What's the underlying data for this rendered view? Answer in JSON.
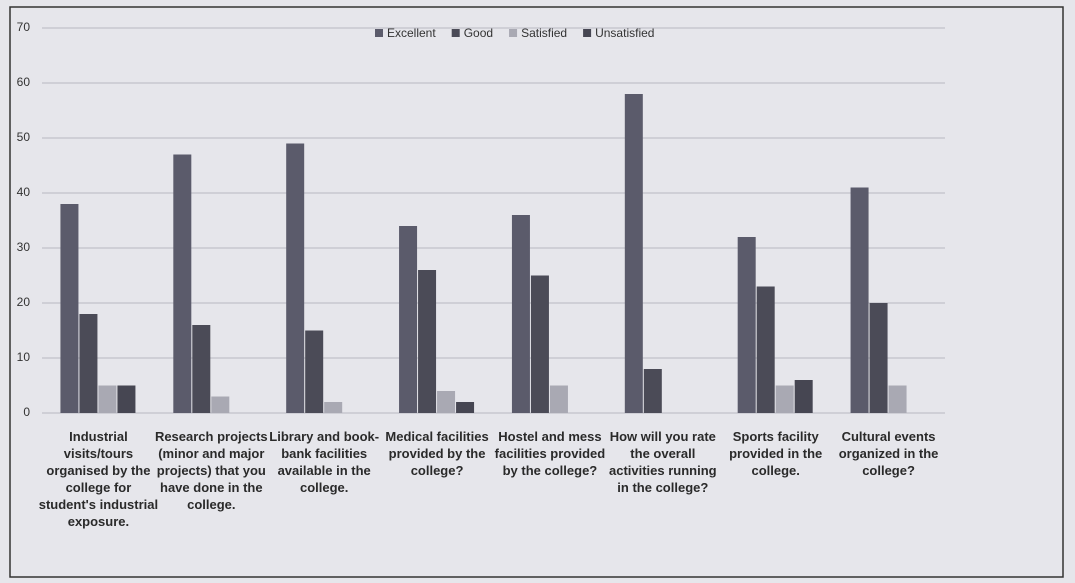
{
  "chart_data": {
    "type": "bar",
    "categories": [
      "Industrial visits/tours organised by the college for student's industrial exposure.",
      "Research projects (minor and major projects) that you have done in the college.",
      "Library and book-bank facilities available in the college.",
      "Medical facilities provided by the college?",
      "Hostel and mess facilities provided by the college?",
      "How will you rate the overall activities running in the college?",
      "Sports facility provided in the college.",
      "Cultural events organized in the college?"
    ],
    "series": [
      {
        "name": "Excellent",
        "color": "#5b5b6b",
        "values": [
          38,
          47,
          49,
          34,
          36,
          58,
          32,
          41
        ]
      },
      {
        "name": "Good",
        "color": "#4b4b57",
        "values": [
          18,
          16,
          15,
          26,
          25,
          8,
          23,
          20
        ]
      },
      {
        "name": "Satisfied",
        "color": "#a9a9b3",
        "values": [
          5,
          3,
          2,
          4,
          5,
          0,
          5,
          5
        ]
      },
      {
        "name": "Unsatisfied",
        "color": "#464652",
        "values": [
          5,
          0,
          0,
          2,
          0,
          0,
          6,
          0
        ]
      }
    ],
    "ylim": [
      0,
      70
    ],
    "yticks": [
      0,
      10,
      20,
      30,
      40,
      50,
      60,
      70
    ],
    "grid": true,
    "legend": "top"
  }
}
